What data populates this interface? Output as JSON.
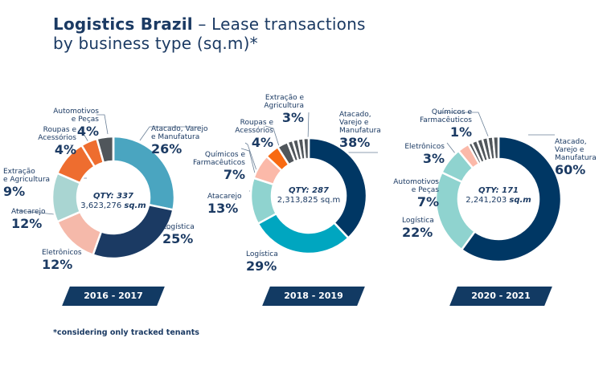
{
  "title_bold": "Logistics Brazil",
  "title_rest": " – Lease transactions",
  "title_line2": "by business type (sq.m)*",
  "footnote": "*considering only tracked tenants",
  "chart_data": [
    {
      "type": "pie",
      "period": "2016 - 2017",
      "qty": "QTY: 337",
      "area": "3,623,276",
      "unit": "sq.m",
      "series": [
        {
          "name": "Atacado, Varejo e Manufatura",
          "value": 26,
          "pct": "26%",
          "color": "#4aa5c0"
        },
        {
          "name": "Logística",
          "value": 25,
          "pct": "25%",
          "color": "#1b3a63"
        },
        {
          "name": "Eletrônicos",
          "value": 12,
          "pct": "12%",
          "color": "#f5b9aa"
        },
        {
          "name": "Atacarejo",
          "value": 12,
          "pct": "12%",
          "color": "#a9d5d2"
        },
        {
          "name": "Extração e Agricultura",
          "value": 9,
          "pct": "9%",
          "color": "#ee6d2f"
        },
        {
          "name": "Roupas e Acessórios",
          "value": 4,
          "pct": "4%",
          "color": "#ee6d2f"
        },
        {
          "name": "Automotivos e Peças",
          "value": 4,
          "pct": "4%",
          "color": "#50565b"
        }
      ]
    },
    {
      "type": "pie",
      "period": "2018 - 2019",
      "qty": "QTY: 287",
      "area": "2,313,825",
      "unit": "sq.m",
      "series": [
        {
          "name": "Atacado, Varejo e Manufatura",
          "value": 38,
          "pct": "38%",
          "color": "#003764"
        },
        {
          "name": "Logística",
          "value": 29,
          "pct": "29%",
          "color": "#00a6c0"
        },
        {
          "name": "Atacarejo",
          "value": 13,
          "pct": "13%",
          "color": "#8fd3cf"
        },
        {
          "name": "Químicos e Farmacêuticos",
          "value": 7,
          "pct": "7%",
          "color": "#fbb9a9"
        },
        {
          "name": "Roupas e Acessórios",
          "value": 4,
          "pct": "4%",
          "color": "#f86a12"
        },
        {
          "name": "Extração e Agricultura",
          "value": 3,
          "pct": "3%",
          "color": "#50565b"
        }
      ]
    },
    {
      "type": "pie",
      "period": "2020 - 2021",
      "qty": "QTY: 171",
      "area": "2,241,203",
      "unit": "sq.m",
      "series": [
        {
          "name": "Atacado, Varejo e Manufatura",
          "value": 60,
          "pct": "60%",
          "color": "#003764"
        },
        {
          "name": "Logística",
          "value": 22,
          "pct": "22%",
          "color": "#8fd3cf"
        },
        {
          "name": "Automotivos e Peças",
          "value": 7,
          "pct": "7%",
          "color": "#8fd3cf"
        },
        {
          "name": "Eletrônicos",
          "value": 3,
          "pct": "3%",
          "color": "#fbb9a9"
        },
        {
          "name": "Químicos e Farmacêuticos",
          "value": 1,
          "pct": "1%",
          "color": "#50565b"
        }
      ]
    }
  ]
}
